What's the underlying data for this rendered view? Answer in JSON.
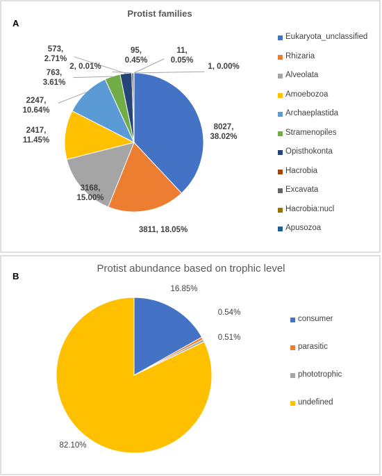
{
  "chart_data": [
    {
      "type": "pie",
      "label": "A",
      "title": "Protist families",
      "categories": [
        "Eukaryota_unclassified",
        "Rhizaria",
        "Alveolata",
        "Amoebozoa",
        "Archaeplastida",
        "Stramenopiles",
        "Opisthokonta",
        "Hacrobia",
        "Excavata",
        "Hacrobia:nucl",
        "Apusozoa"
      ],
      "values": [
        8027,
        3811,
        3168,
        2417,
        2247,
        763,
        573,
        2,
        95,
        11,
        1
      ],
      "value_labels": [
        "8027, 38.02%",
        "3811, 18.05%",
        "3168, 15.00%",
        "2417, 11.45%",
        "2247, 10.64%",
        "763, 3.61%",
        "573, 2.71%",
        "2, 0.01%",
        "95, 0.45%",
        "11, 0.05%",
        "1, 0.00%"
      ],
      "colors": [
        "#4472c4",
        "#ed7d31",
        "#a5a5a5",
        "#ffc000",
        "#5b9bd5",
        "#70ad47",
        "#264478",
        "#9e480e",
        "#636363",
        "#997300",
        "#255e91"
      ],
      "legend": "right"
    },
    {
      "type": "pie",
      "label": "B",
      "title": "Protist abundance based on trophic level",
      "categories": [
        "consumer",
        "parasitic",
        "phototrophic",
        "undefined"
      ],
      "values": [
        16.85,
        0.54,
        0.51,
        82.1
      ],
      "value_labels": [
        "16.85%",
        "0.54%",
        "0.51%",
        "82.10%"
      ],
      "colors": [
        "#4472c4",
        "#ed7d31",
        "#a5a5a5",
        "#ffc000"
      ],
      "legend": "right"
    }
  ]
}
